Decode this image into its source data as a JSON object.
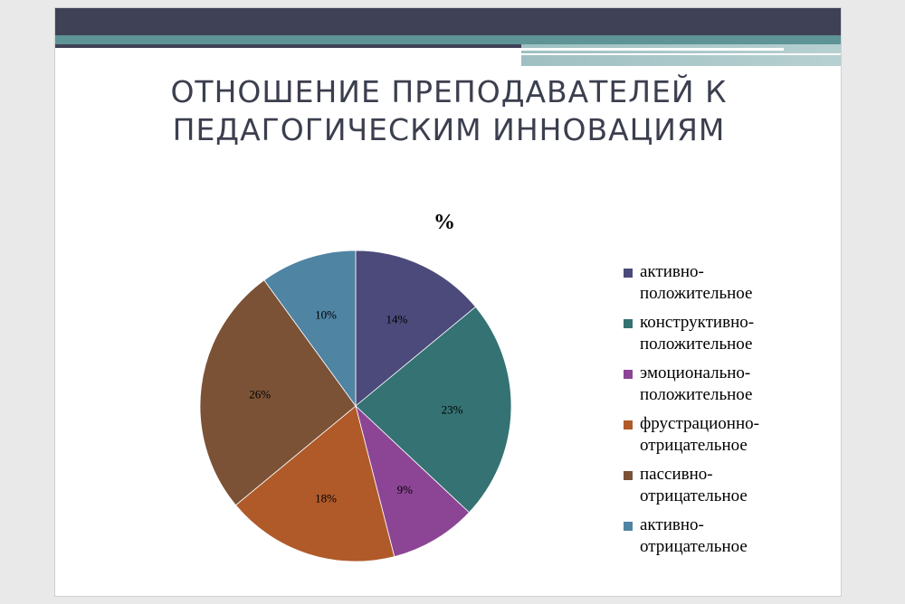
{
  "slide": {
    "title_line1": "ОТНОШЕНИЕ ПРЕПОДАВАТЕЛЕЙ К",
    "title_line2": "ПЕДАГОГИЧЕСКИМ ИННОВАЦИЯМ"
  },
  "colors": {
    "header": "#3f4157",
    "accent": "#5e9496"
  },
  "chart_data": {
    "type": "pie",
    "title": "%",
    "legend_position": "right",
    "slices": [
      {
        "label": "активно-положительное",
        "label_line1": "активно-",
        "label_line2": "положительное",
        "value": 14,
        "value_label": "14%",
        "color": "#4b4a7a"
      },
      {
        "label": "конструктивно-положительное",
        "label_line1": "конструктивно-",
        "label_line2": "положительное",
        "value": 23,
        "value_label": "23%",
        "color": "#357273"
      },
      {
        "label": "эмоционально-положительное",
        "label_line1": "эмоционально-",
        "label_line2": "положительное",
        "value": 9,
        "value_label": "9%",
        "color": "#8c4595"
      },
      {
        "label": "фрустрационно-отрицательное",
        "label_line1": "фрустрационно-",
        "label_line2": "отрицательное",
        "value": 18,
        "value_label": "18%",
        "color": "#b05a2a"
      },
      {
        "label": "пассивно-отрицательное",
        "label_line1": "пассивно-",
        "label_line2": "отрицательное",
        "value": 26,
        "value_label": "26%",
        "color": "#7b5236"
      },
      {
        "label": "активно-отрицательное",
        "label_line1": "активно-",
        "label_line2": "отрицательное",
        "value": 10,
        "value_label": "10%",
        "color": "#4f84a3"
      }
    ]
  }
}
